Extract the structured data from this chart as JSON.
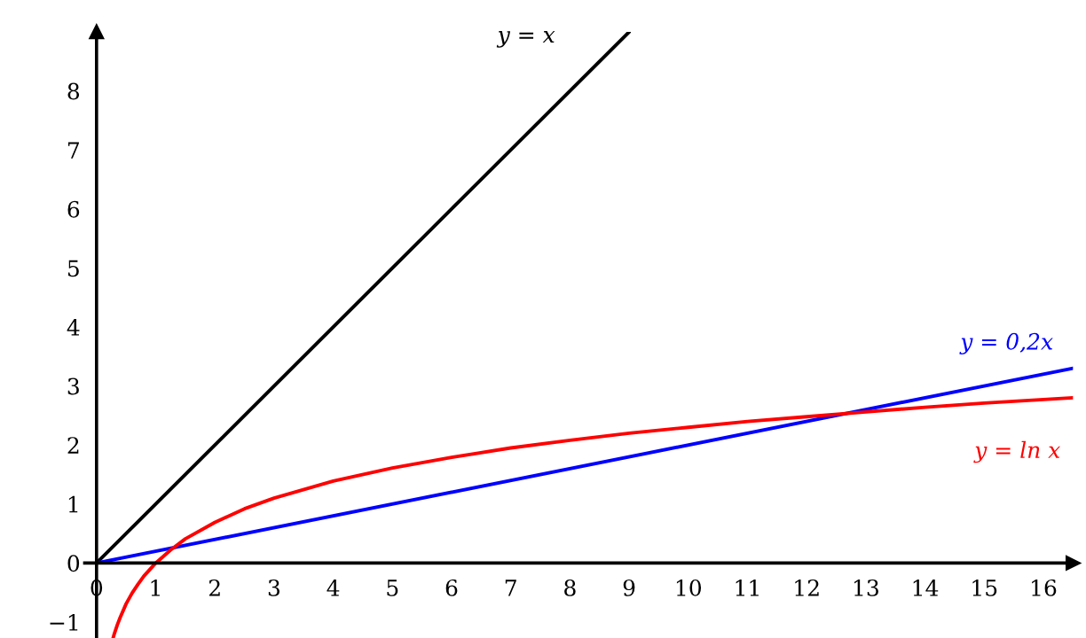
{
  "chart_data": {
    "type": "line",
    "xlim": [
      -0.2,
      16.5
    ],
    "ylim": [
      -1.27,
      9.0
    ],
    "xticks": [
      0,
      1,
      2,
      3,
      4,
      5,
      6,
      7,
      8,
      9,
      10,
      11,
      12,
      13,
      14,
      15,
      16
    ],
    "yticks": [
      {
        "value": -1,
        "label": "−1"
      },
      0,
      1,
      2,
      3,
      4,
      5,
      6,
      7,
      8
    ],
    "grid": false,
    "legend": false,
    "marker": "none",
    "line_style": "solid",
    "series": [
      {
        "name": "y = x",
        "color": "#000000",
        "x": [
          0,
          9
        ],
        "values": [
          0,
          9
        ]
      },
      {
        "name": "y = 0,2x",
        "color": "#0000ff",
        "x": [
          0,
          16.5
        ],
        "values": [
          0,
          3.3
        ]
      },
      {
        "name": "y = ln x",
        "color": "#ff0000",
        "x": [
          0.28,
          0.3,
          0.35,
          0.4,
          0.5,
          0.6,
          0.7,
          0.8,
          1,
          1.25,
          1.5,
          2,
          2.5,
          3,
          4,
          5,
          6,
          7,
          8,
          9,
          10,
          11,
          12,
          13,
          14,
          15,
          16,
          16.5
        ],
        "values": [
          -1.27,
          -1.2,
          -1.05,
          -0.92,
          -0.69,
          -0.51,
          -0.36,
          -0.22,
          0,
          0.22,
          0.41,
          0.69,
          0.92,
          1.1,
          1.39,
          1.61,
          1.79,
          1.95,
          2.08,
          2.2,
          2.3,
          2.4,
          2.48,
          2.56,
          2.64,
          2.71,
          2.77,
          2.8
        ]
      }
    ]
  }
}
